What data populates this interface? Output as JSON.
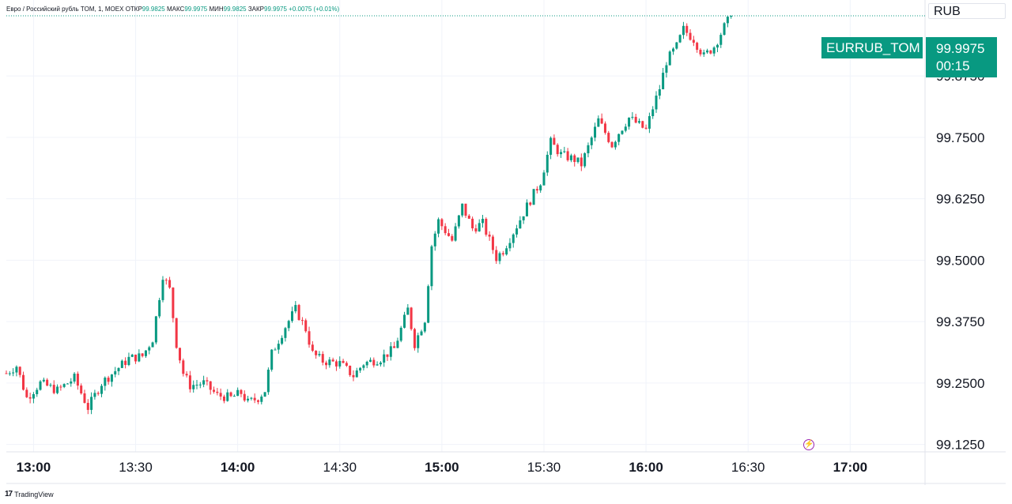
{
  "legend": {
    "symbol_text": "Евро / Российский рубль TOM, 1, MOEX",
    "open_label": "ОТКР",
    "open_value": "99.9825",
    "high_label": "МАКС",
    "high_value": "99.9975",
    "low_label": "МИН",
    "low_value": "99.9825",
    "close_label": "ЗАКР",
    "close_value": "99.9975",
    "change": "+0.0075 (+0.01%)"
  },
  "currency": "RUB",
  "last": {
    "symbol": "EURRUB_TOM",
    "price": "99.9975",
    "countdown": "00:15"
  },
  "branding": {
    "tv_mark": "17",
    "text": "TradingView"
  },
  "icons": {
    "bolt": "lightning-icon"
  },
  "colors": {
    "up": "#089981",
    "down": "#f23645",
    "grid": "#f0f3fa"
  },
  "chart_data": {
    "type": "candlestick",
    "interval": "1 minute",
    "x_ticks": [
      {
        "label": "13:00",
        "minutes": 780,
        "bold": true
      },
      {
        "label": "13:30",
        "minutes": 810,
        "bold": false
      },
      {
        "label": "14:00",
        "minutes": 840,
        "bold": true
      },
      {
        "label": "14:30",
        "minutes": 870,
        "bold": false
      },
      {
        "label": "15:00",
        "minutes": 900,
        "bold": true
      },
      {
        "label": "15:30",
        "minutes": 930,
        "bold": false
      },
      {
        "label": "16:00",
        "minutes": 960,
        "bold": true
      },
      {
        "label": "16:30",
        "minutes": 990,
        "bold": false
      },
      {
        "label": "17:00",
        "minutes": 1020,
        "bold": true
      }
    ],
    "y_ticks": [
      "99.8750",
      "99.7500",
      "99.6250",
      "99.5000",
      "99.3750",
      "99.2500",
      "99.1250"
    ],
    "ylim": [
      99.11,
      100.02
    ],
    "x_range_minutes": [
      772,
      1042
    ],
    "last_price": 99.9975,
    "anchors": [
      [
        772,
        99.27
      ],
      [
        775,
        99.285
      ],
      [
        778,
        99.22
      ],
      [
        782,
        99.25
      ],
      [
        787,
        99.235
      ],
      [
        792,
        99.26
      ],
      [
        796,
        99.2
      ],
      [
        800,
        99.25
      ],
      [
        804,
        99.275
      ],
      [
        808,
        99.3
      ],
      [
        812,
        99.305
      ],
      [
        815,
        99.34
      ],
      [
        818,
        99.47
      ],
      [
        820,
        99.44
      ],
      [
        822,
        99.33
      ],
      [
        824,
        99.27
      ],
      [
        826,
        99.245
      ],
      [
        830,
        99.25
      ],
      [
        834,
        99.225
      ],
      [
        838,
        99.22
      ],
      [
        841,
        99.23
      ],
      [
        843,
        99.21
      ],
      [
        846,
        99.22
      ],
      [
        848,
        99.235
      ],
      [
        850,
        99.31
      ],
      [
        854,
        99.365
      ],
      [
        857,
        99.4
      ],
      [
        860,
        99.36
      ],
      [
        862,
        99.31
      ],
      [
        865,
        99.295
      ],
      [
        870,
        99.29
      ],
      [
        874,
        99.265
      ],
      [
        877,
        99.29
      ],
      [
        882,
        99.3
      ],
      [
        886,
        99.32
      ],
      [
        890,
        99.4
      ],
      [
        892,
        99.33
      ],
      [
        895,
        99.38
      ],
      [
        897,
        99.53
      ],
      [
        899,
        99.58
      ],
      [
        903,
        99.54
      ],
      [
        906,
        99.61
      ],
      [
        909,
        99.565
      ],
      [
        912,
        99.575
      ],
      [
        914,
        99.54
      ],
      [
        916,
        99.505
      ],
      [
        918,
        99.52
      ],
      [
        920,
        99.545
      ],
      [
        922,
        99.57
      ],
      [
        925,
        99.61
      ],
      [
        929,
        99.66
      ],
      [
        932,
        99.74
      ],
      [
        935,
        99.715
      ],
      [
        939,
        99.705
      ],
      [
        941,
        99.695
      ],
      [
        943,
        99.73
      ],
      [
        946,
        99.785
      ],
      [
        948,
        99.76
      ],
      [
        950,
        99.735
      ],
      [
        952,
        99.76
      ],
      [
        955,
        99.79
      ],
      [
        958,
        99.775
      ],
      [
        960,
        99.765
      ],
      [
        962,
        99.81
      ],
      [
        964,
        99.85
      ],
      [
        966,
        99.905
      ],
      [
        969,
        99.935
      ],
      [
        971,
        99.97
      ],
      [
        974,
        99.95
      ],
      [
        977,
        99.915
      ],
      [
        980,
        99.935
      ],
      [
        983,
        99.975
      ],
      [
        985,
        99.9975
      ]
    ]
  }
}
